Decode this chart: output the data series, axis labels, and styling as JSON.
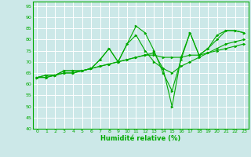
{
  "title": "",
  "xlabel": "Humidité relative (%)",
  "ylabel": "",
  "xlim": [
    -0.5,
    23.5
  ],
  "ylim": [
    40,
    97
  ],
  "yticks": [
    40,
    45,
    50,
    55,
    60,
    65,
    70,
    75,
    80,
    85,
    90,
    95
  ],
  "xticks": [
    0,
    1,
    2,
    3,
    4,
    5,
    6,
    7,
    8,
    9,
    10,
    11,
    12,
    13,
    14,
    15,
    16,
    17,
    18,
    19,
    20,
    21,
    22,
    23
  ],
  "bg_color": "#cce8e8",
  "grid_color": "#ffffff",
  "line_color": "#00aa00",
  "lines": [
    [
      63,
      64,
      64,
      66,
      66,
      66,
      67,
      71,
      76,
      70,
      78,
      86,
      83,
      75,
      65,
      57,
      71,
      83,
      73,
      76,
      82,
      84,
      84,
      83
    ],
    [
      63,
      64,
      64,
      66,
      66,
      66,
      67,
      71,
      76,
      70,
      78,
      82,
      75,
      70,
      67,
      50,
      72,
      83,
      73,
      76,
      80,
      84,
      84,
      83
    ],
    [
      63,
      63,
      64,
      65,
      65,
      66,
      67,
      68,
      69,
      70,
      71,
      72,
      73,
      74,
      67,
      65,
      68,
      70,
      72,
      74,
      76,
      78,
      79,
      80
    ],
    [
      63,
      63,
      64,
      65,
      65,
      66,
      67,
      68,
      69,
      70,
      71,
      72,
      73,
      73,
      72,
      72,
      72,
      73,
      73,
      74,
      75,
      76,
      77,
      78
    ]
  ]
}
